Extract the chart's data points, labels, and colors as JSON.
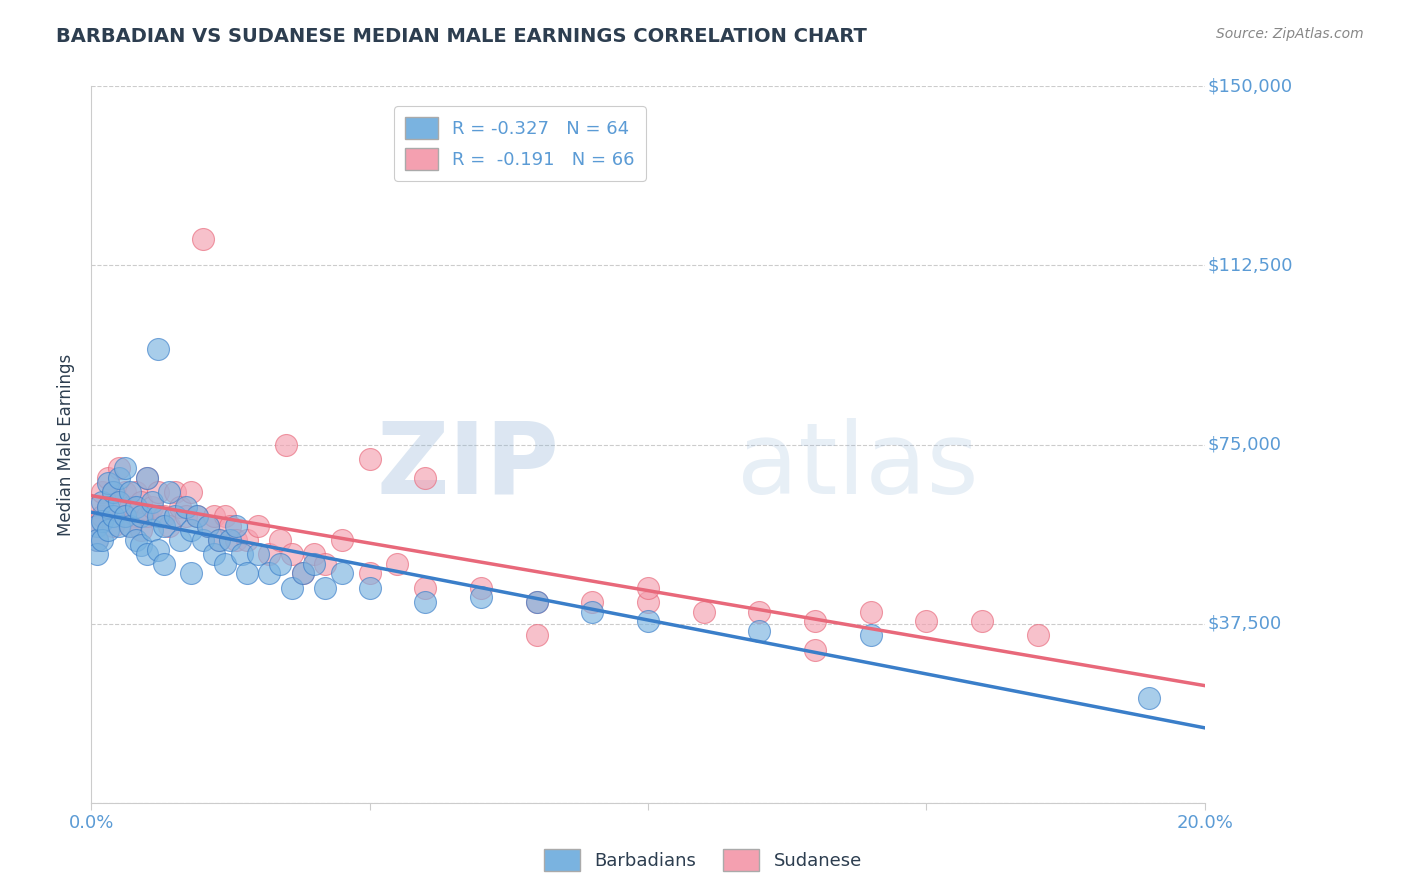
{
  "title": "BARBADIAN VS SUDANESE MEDIAN MALE EARNINGS CORRELATION CHART",
  "source": "Source: ZipAtlas.com",
  "xlabel": "",
  "ylabel": "Median Male Earnings",
  "xlim": [
    0.0,
    0.2
  ],
  "ylim": [
    0,
    150000
  ],
  "yticks": [
    0,
    37500,
    75000,
    112500,
    150000
  ],
  "ytick_labels": [
    "",
    "$37,500",
    "$75,000",
    "$112,500",
    "$150,000"
  ],
  "xticks": [
    0.0,
    0.05,
    0.1,
    0.15,
    0.2
  ],
  "xtick_labels": [
    "0.0%",
    "",
    "",
    "",
    "20.0%"
  ],
  "background_color": "#ffffff",
  "grid_color": "#cccccc",
  "title_color": "#2d3e50",
  "axis_label_color": "#2d3e50",
  "tick_color": "#5b9bd5",
  "source_color": "#888888",
  "barbadians_color": "#7ab3e0",
  "sudanese_color": "#f4a0b0",
  "barbadians_line_color": "#3a7ec9",
  "sudanese_line_color": "#e8687a",
  "legend_label_1": "R = -0.327   N = 64",
  "legend_label_2": "R =  -0.191   N = 66",
  "watermark_zip": "ZIP",
  "watermark_atlas": "atlas",
  "barbadians_x": [
    0.001,
    0.001,
    0.001,
    0.002,
    0.002,
    0.002,
    0.003,
    0.003,
    0.003,
    0.004,
    0.004,
    0.005,
    0.005,
    0.005,
    0.006,
    0.006,
    0.007,
    0.007,
    0.008,
    0.008,
    0.009,
    0.009,
    0.01,
    0.01,
    0.011,
    0.011,
    0.012,
    0.012,
    0.013,
    0.014,
    0.015,
    0.016,
    0.017,
    0.018,
    0.019,
    0.02,
    0.021,
    0.022,
    0.023,
    0.024,
    0.025,
    0.026,
    0.027,
    0.028,
    0.03,
    0.032,
    0.034,
    0.036,
    0.038,
    0.04,
    0.042,
    0.045,
    0.05,
    0.06,
    0.07,
    0.08,
    0.09,
    0.1,
    0.12,
    0.14,
    0.012,
    0.018,
    0.19,
    0.013
  ],
  "barbadians_y": [
    58000,
    55000,
    52000,
    63000,
    59000,
    55000,
    67000,
    62000,
    57000,
    65000,
    60000,
    68000,
    63000,
    58000,
    70000,
    60000,
    65000,
    58000,
    62000,
    55000,
    60000,
    54000,
    68000,
    52000,
    63000,
    57000,
    60000,
    53000,
    58000,
    65000,
    60000,
    55000,
    62000,
    57000,
    60000,
    55000,
    58000,
    52000,
    55000,
    50000,
    55000,
    58000,
    52000,
    48000,
    52000,
    48000,
    50000,
    45000,
    48000,
    50000,
    45000,
    48000,
    45000,
    42000,
    43000,
    42000,
    40000,
    38000,
    36000,
    35000,
    95000,
    48000,
    22000,
    50000
  ],
  "sudanese_x": [
    0.001,
    0.001,
    0.001,
    0.002,
    0.002,
    0.003,
    0.003,
    0.004,
    0.004,
    0.005,
    0.005,
    0.006,
    0.006,
    0.007,
    0.007,
    0.008,
    0.008,
    0.009,
    0.009,
    0.01,
    0.01,
    0.011,
    0.012,
    0.013,
    0.014,
    0.015,
    0.016,
    0.017,
    0.018,
    0.019,
    0.02,
    0.021,
    0.022,
    0.023,
    0.024,
    0.025,
    0.026,
    0.028,
    0.03,
    0.032,
    0.034,
    0.036,
    0.038,
    0.04,
    0.042,
    0.045,
    0.05,
    0.055,
    0.06,
    0.07,
    0.08,
    0.09,
    0.1,
    0.11,
    0.12,
    0.13,
    0.14,
    0.15,
    0.16,
    0.17,
    0.035,
    0.05,
    0.06,
    0.08,
    0.1,
    0.13
  ],
  "sudanese_y": [
    62000,
    58000,
    55000,
    65000,
    60000,
    68000,
    62000,
    65000,
    58000,
    70000,
    63000,
    65000,
    60000,
    62000,
    58000,
    65000,
    60000,
    63000,
    57000,
    68000,
    60000,
    62000,
    65000,
    60000,
    58000,
    65000,
    62000,
    60000,
    65000,
    60000,
    118000,
    58000,
    60000,
    55000,
    60000,
    58000,
    55000,
    55000,
    58000,
    52000,
    55000,
    52000,
    48000,
    52000,
    50000,
    55000,
    48000,
    50000,
    45000,
    45000,
    42000,
    42000,
    42000,
    40000,
    40000,
    38000,
    40000,
    38000,
    38000,
    35000,
    75000,
    72000,
    68000,
    35000,
    45000,
    32000
  ]
}
